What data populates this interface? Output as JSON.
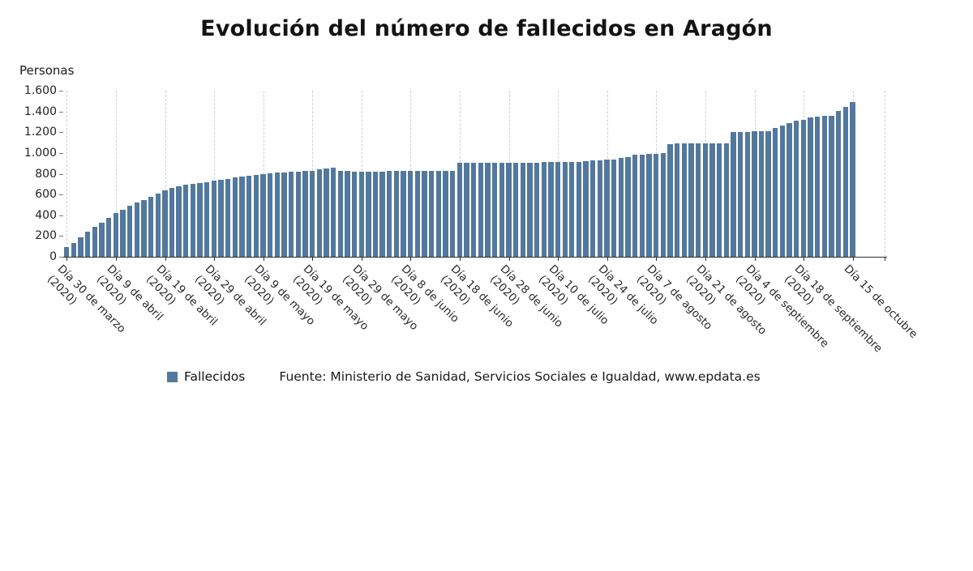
{
  "title": "Evolución del número de fallecidos en Aragón",
  "legend": {
    "label": "Fallecidos",
    "source": "Fuente: Ministerio de Sanidad, Servicios Sociales e Igualdad, www.epdata.es"
  },
  "chart_data": {
    "type": "bar",
    "title": "Evolución del número de fallecidos en Aragón",
    "ylabel": "Personas",
    "xlabel": "",
    "ylim": [
      0,
      1600
    ],
    "grid": "vertical-dashed",
    "legend_position": "bottom-left",
    "bar_color": "#53789e",
    "axis_color": "#2f2f2f",
    "gridline_color": "#cfcfcf",
    "series_name": "Fallecidos",
    "y_tick_labels": [
      "0",
      "200",
      "400",
      "600",
      "800",
      "1.000",
      "1.200",
      "1.400",
      "1.600"
    ],
    "tick_interval": 7,
    "x_tick_labels": [
      {
        "date": "Día 30 de marzo",
        "year": "(2020)"
      },
      {
        "date": "Día 9 de abril",
        "year": "(2020)"
      },
      {
        "date": "Día 19 de abril",
        "year": "(2020)"
      },
      {
        "date": "Día 29 de abril",
        "year": "(2020)"
      },
      {
        "date": "Día 9 de mayo",
        "year": "(2020)"
      },
      {
        "date": "Día 19 de mayo",
        "year": "(2020)"
      },
      {
        "date": "Día 29 de mayo",
        "year": "(2020)"
      },
      {
        "date": "Día 8 de junio",
        "year": "(2020)"
      },
      {
        "date": "Día 18 de junio",
        "year": "(2020)"
      },
      {
        "date": "Día 28 de junio",
        "year": "(2020)"
      },
      {
        "date": "Día 10 de julio",
        "year": "(2020)"
      },
      {
        "date": "Día 24 de julio",
        "year": "(2020)"
      },
      {
        "date": "Día 7 de agosto",
        "year": "(2020)"
      },
      {
        "date": "Día 21 de agosto",
        "year": "(2020)"
      },
      {
        "date": "Día 4 de septiembre",
        "year": "(2020)"
      },
      {
        "date": "Día 18 de septiembre",
        "year": "(2020)"
      },
      {
        "date": "Día 15 de octubre",
        "year": ""
      }
    ],
    "values": [
      95,
      130,
      185,
      240,
      290,
      330,
      375,
      420,
      455,
      490,
      520,
      550,
      580,
      610,
      640,
      662,
      680,
      695,
      705,
      713,
      722,
      730,
      742,
      752,
      762,
      772,
      781,
      791,
      800,
      806,
      811,
      815,
      819,
      823,
      827,
      830,
      840,
      848,
      855,
      828,
      825,
      823,
      822,
      822,
      823,
      823,
      824,
      824,
      825,
      825,
      826,
      826,
      827,
      827,
      828,
      829,
      905,
      906,
      906,
      907,
      907,
      907,
      908,
      908,
      908,
      909,
      909,
      909,
      910,
      910,
      910,
      911,
      911,
      912,
      920,
      925,
      929,
      933,
      940,
      950,
      962,
      985,
      987,
      989,
      990,
      1000,
      1088,
      1090,
      1091,
      1092,
      1092,
      1093,
      1093,
      1094,
      1094,
      1200,
      1203,
      1205,
      1208,
      1208,
      1209,
      1240,
      1268,
      1290,
      1308,
      1322,
      1340,
      1352,
      1358,
      1362,
      1402,
      1445,
      1490
    ]
  }
}
